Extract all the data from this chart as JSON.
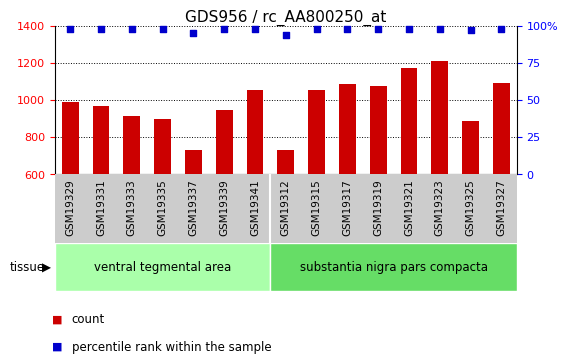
{
  "title": "GDS956 / rc_AA800250_at",
  "categories": [
    "GSM19329",
    "GSM19331",
    "GSM19333",
    "GSM19335",
    "GSM19337",
    "GSM19339",
    "GSM19341",
    "GSM19312",
    "GSM19315",
    "GSM19317",
    "GSM19319",
    "GSM19321",
    "GSM19323",
    "GSM19325",
    "GSM19327"
  ],
  "values": [
    990,
    965,
    915,
    895,
    730,
    945,
    1055,
    730,
    1055,
    1085,
    1075,
    1170,
    1210,
    885,
    1090
  ],
  "percentile_values": [
    98,
    98,
    98,
    98,
    95,
    98,
    98,
    94,
    98,
    98,
    98,
    98,
    98,
    97,
    98
  ],
  "bar_color": "#cc0000",
  "dot_color": "#0000cc",
  "ylim_left": [
    600,
    1400
  ],
  "ylim_right": [
    0,
    100
  ],
  "yticks_left": [
    600,
    800,
    1000,
    1200,
    1400
  ],
  "yticks_right": [
    0,
    25,
    50,
    75,
    100
  ],
  "group1_label": "ventral tegmental area",
  "group2_label": "substantia nigra pars compacta",
  "group1_count": 7,
  "group2_count": 8,
  "group1_color": "#aaffaa",
  "group2_color": "#66dd66",
  "tissue_label": "tissue",
  "legend_count_label": "count",
  "legend_pct_label": "percentile rank within the sample",
  "xtick_bg_color": "#cccccc",
  "title_fontsize": 11,
  "tick_fontsize": 8,
  "label_fontsize": 8.5
}
